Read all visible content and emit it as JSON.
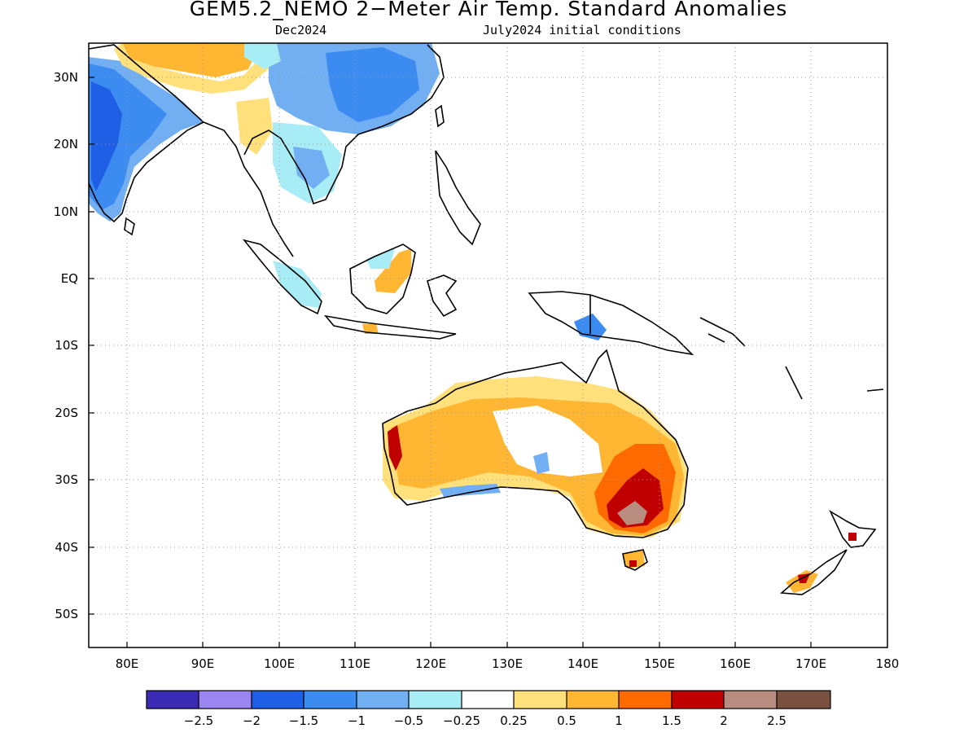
{
  "title": "GEM5.2_NEMO 2−Meter Air Temp. Standard Anomalies",
  "subtitle_left": "Dec2024",
  "subtitle_right": "July2024 initial conditions",
  "axes": {
    "lon_ticks": [
      "80E",
      "90E",
      "100E",
      "110E",
      "120E",
      "130E",
      "140E",
      "150E",
      "160E",
      "170E",
      "180"
    ],
    "lat_ticks": [
      "30N",
      "20N",
      "10N",
      "EQ",
      "10S",
      "20S",
      "30S",
      "40S",
      "50S"
    ],
    "lon_range": [
      75,
      180
    ],
    "lat_range": [
      -55,
      35
    ],
    "grid": "dotted"
  },
  "colorbar": {
    "labels": [
      "−2.5",
      "−2",
      "−1.5",
      "−1",
      "−0.5",
      "−0.25",
      "0.25",
      "0.5",
      "1",
      "1.5",
      "2",
      "2.5"
    ],
    "colors": [
      "#3b2bb5",
      "#9a86f0",
      "#1f5fe6",
      "#3b8bf0",
      "#72aef2",
      "#a8ecf6",
      "#ffffff",
      "#ffe07a",
      "#ffb733",
      "#ff6a00",
      "#c00000",
      "#b88c7e",
      "#7a5040"
    ]
  },
  "anomaly_colors": {
    "neg_1_5": "#1f5fe6",
    "neg_1": "#3b8bf0",
    "neg_0_5": "#72aef2",
    "neg_0_25": "#a8ecf6",
    "pos_0_25": "#ffe07a",
    "pos_0_5": "#ffb733",
    "pos_1": "#ff6a00",
    "pos_1_5": "#c00000",
    "pos_2": "#b88c7e"
  }
}
